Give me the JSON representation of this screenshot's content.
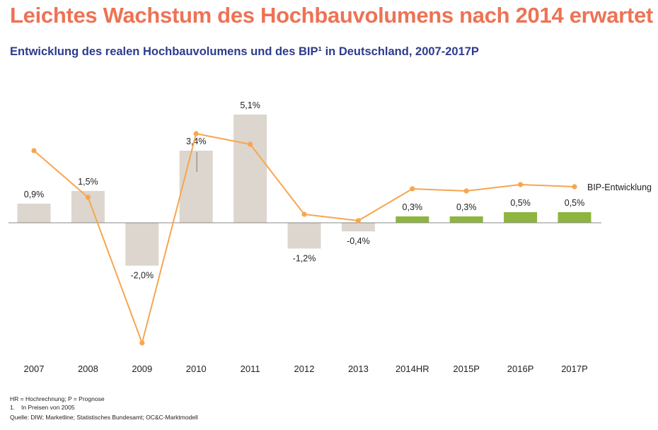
{
  "title": "Leichtes Wachstum des Hochbauvolumens nach 2014 erwartet",
  "subtitle": "Entwicklung des realen Hochbauvolumens und des BIP¹ in Deutschland, 2007-2017P",
  "colors": {
    "title": "#ee7254",
    "subtitle": "#2d3b8e",
    "bar_actual": "#dcd6ce",
    "bar_forecast": "#8db53f",
    "line": "#f7a64f",
    "axis": "#888888",
    "text": "#222222"
  },
  "chart_data": {
    "type": "bar+line",
    "categories": [
      "2007",
      "2008",
      "2009",
      "2010",
      "2011",
      "2012",
      "2013",
      "2014HR",
      "2015P",
      "2016P",
      "2017P"
    ],
    "bars": {
      "values": [
        0.9,
        1.5,
        -2.0,
        3.4,
        5.1,
        -1.2,
        -0.4,
        0.3,
        0.3,
        0.5,
        0.5
      ],
      "labels": [
        "0,9%",
        "1,5%",
        "-2,0%",
        "3,4%",
        "5,1%",
        "-1,2%",
        "-0,4%",
        "0,3%",
        "0,3%",
        "0,5%",
        "0,5%"
      ],
      "forecast_from_index": 7
    },
    "line": {
      "name": "BIP-Entwicklung",
      "values": [
        3.4,
        1.2,
        -5.6,
        4.2,
        3.7,
        0.4,
        0.1,
        1.6,
        1.5,
        1.8,
        1.7
      ]
    },
    "ylim": [
      -6.0,
      5.4
    ],
    "grid": false,
    "legend": "inline-right"
  },
  "notes": {
    "line1": "HR = Hochrechnung; P = Prognose",
    "fn_num": "1.",
    "fn_text": "In Preisen von 2005",
    "source": "Quelle: DIW; Marketline; Statistisches Bundesamt; OC&C-Marktmodell"
  }
}
